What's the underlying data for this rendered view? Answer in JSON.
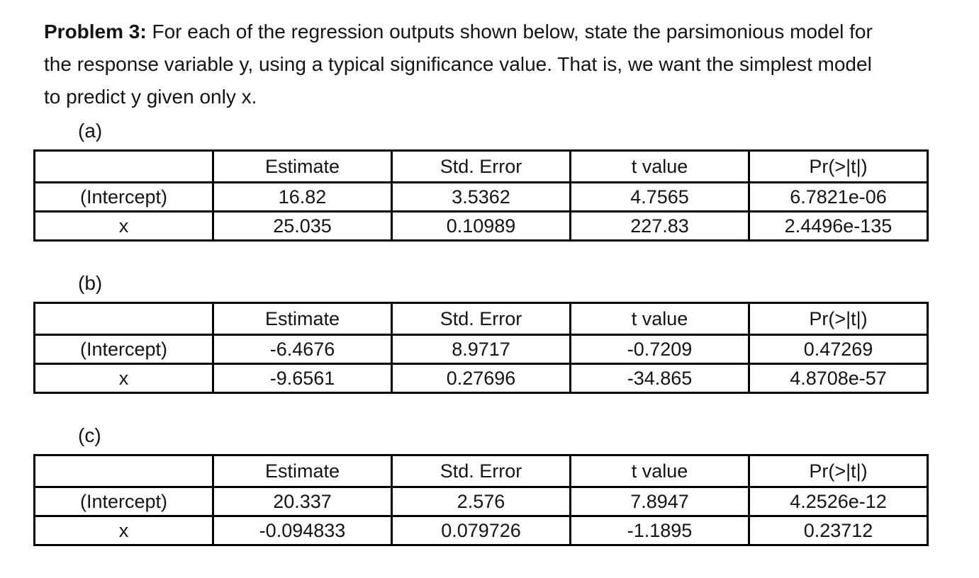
{
  "problem": {
    "title": "Problem 3:",
    "line1_rest": " For each of the regression outputs shown below, state the parsimonious model for",
    "line2": "the response variable y, using a typical significance value. That is, we want the simplest model",
    "line3": "to predict y given only x."
  },
  "columns": [
    "",
    "Estimate",
    "Std. Error",
    "t value",
    "Pr(>|t|)"
  ],
  "tables": [
    {
      "label": "(a)",
      "rows": [
        {
          "name": "(Intercept)",
          "estimate": "16.82",
          "std_error": "3.5362",
          "t_value": "4.7565",
          "pr": "6.7821e-06"
        },
        {
          "name": "x",
          "estimate": "25.035",
          "std_error": "0.10989",
          "t_value": "227.83",
          "pr": "2.4496e-135"
        }
      ]
    },
    {
      "label": "(b)",
      "rows": [
        {
          "name": "(Intercept)",
          "estimate": "-6.4676",
          "std_error": "8.9717",
          "t_value": "-0.7209",
          "pr": "0.47269"
        },
        {
          "name": "x",
          "estimate": "-9.6561",
          "std_error": "0.27696",
          "t_value": "-34.865",
          "pr": "4.8708e-57"
        }
      ]
    },
    {
      "label": "(c)",
      "rows": [
        {
          "name": "(Intercept)",
          "estimate": "20.337",
          "std_error": "2.576",
          "t_value": "7.8947",
          "pr": "4.2526e-12"
        },
        {
          "name": "x",
          "estimate": "-0.094833",
          "std_error": "0.079726",
          "t_value": "-1.1895",
          "pr": "0.23712"
        }
      ]
    }
  ]
}
